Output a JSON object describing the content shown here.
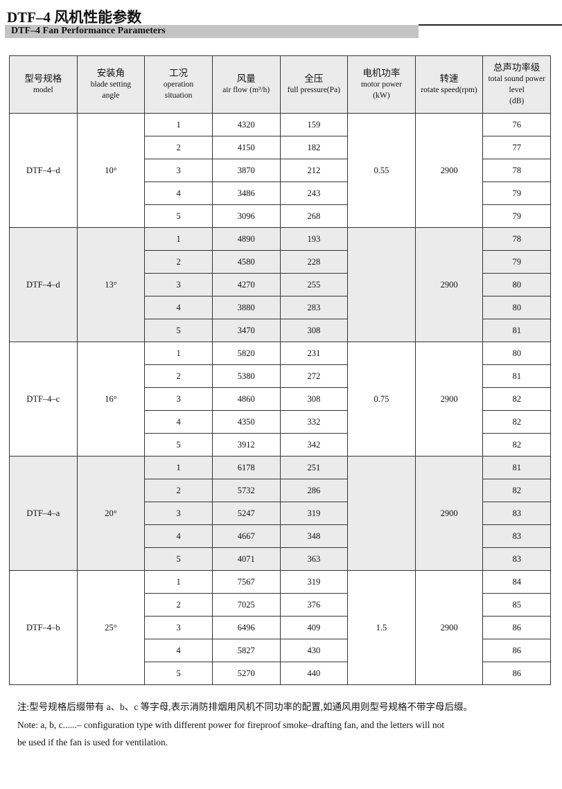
{
  "title": "DTF–4 风机性能参数",
  "subtitle": "DTF–4 Fan Performance Parameters",
  "headers": [
    {
      "zh": "型号规格",
      "en": [
        "model"
      ]
    },
    {
      "zh": "安装角",
      "en": [
        "blade setting",
        "angle"
      ]
    },
    {
      "zh": "工况",
      "en": [
        "operation",
        "situation"
      ]
    },
    {
      "zh": "风量",
      "en": [
        "air flow (m³/h)"
      ]
    },
    {
      "zh": "全压",
      "en": [
        "full pressure(Pa)"
      ]
    },
    {
      "zh": "电机功率",
      "en": [
        "motor power",
        "(kW)"
      ]
    },
    {
      "zh": "转速",
      "en": [
        "rotate speed(rpm)"
      ]
    },
    {
      "zh": "总声功率级",
      "en": [
        "total sound power",
        "level",
        "(dB)"
      ]
    }
  ],
  "groups": [
    {
      "model": "DTF–4–d",
      "angle": "10°",
      "power": "0.55",
      "speed": "2900",
      "shaded": false,
      "rows": [
        [
          "1",
          "4320",
          "159",
          "76"
        ],
        [
          "2",
          "4150",
          "182",
          "77"
        ],
        [
          "3",
          "3870",
          "212",
          "78"
        ],
        [
          "4",
          "3486",
          "243",
          "79"
        ],
        [
          "5",
          "3096",
          "268",
          "79"
        ]
      ]
    },
    {
      "model": "DTF–4–d",
      "angle": "13°",
      "power": "",
      "speed": "2900",
      "shaded": true,
      "rows": [
        [
          "1",
          "4890",
          "193",
          "78"
        ],
        [
          "2",
          "4580",
          "228",
          "79"
        ],
        [
          "3",
          "4270",
          "255",
          "80"
        ],
        [
          "4",
          "3880",
          "283",
          "80"
        ],
        [
          "5",
          "3470",
          "308",
          "81"
        ]
      ]
    },
    {
      "model": "DTF–4–c",
      "angle": "16°",
      "power": "0.75",
      "speed": "2900",
      "shaded": false,
      "rows": [
        [
          "1",
          "5820",
          "231",
          "80"
        ],
        [
          "2",
          "5380",
          "272",
          "81"
        ],
        [
          "3",
          "4860",
          "308",
          "82"
        ],
        [
          "4",
          "4350",
          "332",
          "82"
        ],
        [
          "5",
          "3912",
          "342",
          "82"
        ]
      ]
    },
    {
      "model": "DTF–4–a",
      "angle": "20°",
      "power": "",
      "speed": "2900",
      "shaded": true,
      "rows": [
        [
          "1",
          "6178",
          "251",
          "81"
        ],
        [
          "2",
          "5732",
          "286",
          "82"
        ],
        [
          "3",
          "5247",
          "319",
          "83"
        ],
        [
          "4",
          "4667",
          "348",
          "83"
        ],
        [
          "5",
          "4071",
          "363",
          "83"
        ]
      ]
    },
    {
      "model": "DTF–4–b",
      "angle": "25°",
      "power": "1.5",
      "speed": "2900",
      "shaded": false,
      "rows": [
        [
          "1",
          "7567",
          "319",
          "84"
        ],
        [
          "2",
          "7025",
          "376",
          "85"
        ],
        [
          "3",
          "6496",
          "409",
          "86"
        ],
        [
          "4",
          "5827",
          "430",
          "86"
        ],
        [
          "5",
          "5270",
          "440",
          "86"
        ]
      ]
    }
  ],
  "notes": {
    "zh": "注:型号规格后缀带有 a、b、c 等字母,表示消防排烟用风机不同功率的配置,如通风用则型号规格不带字母后缀。",
    "en1": "Note: a, b, c......– configuration type with different power for fireproof smoke–drafting fan, and the letters will not",
    "en2": "be used if  the fan is used for ventilation."
  }
}
